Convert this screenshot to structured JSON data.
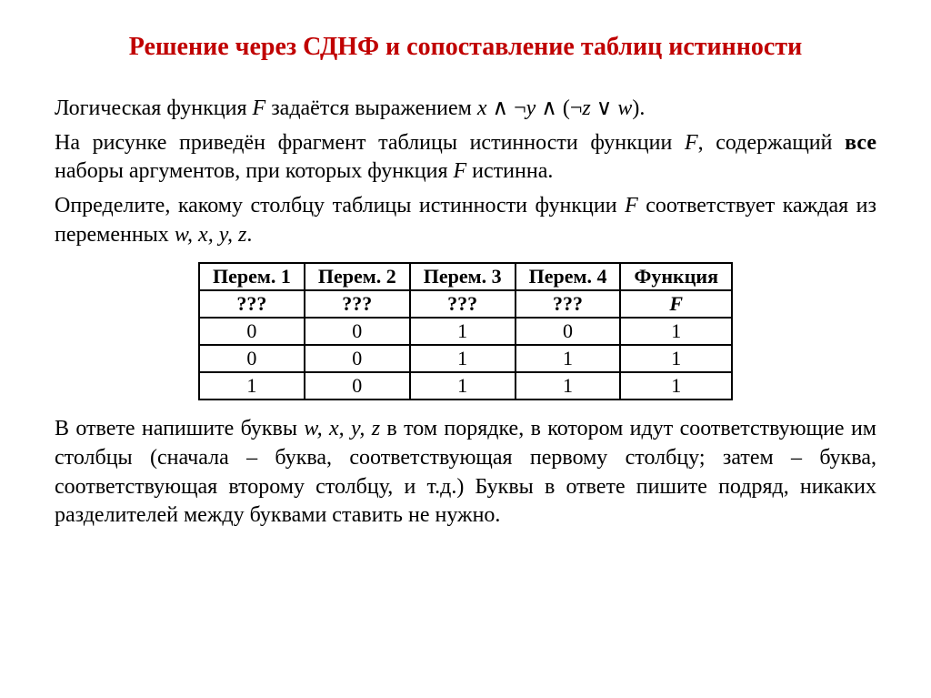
{
  "title": "Решение через СДНФ и сопоставление таблиц истинности",
  "intro": {
    "p1_prefix": "Логическая функция ",
    "F": "F",
    "p1_mid": " задаётся выражением ",
    "expr_x": "x",
    "and1": " ∧ ¬",
    "expr_y": "y",
    "and2": " ∧ (¬",
    "expr_z": "z",
    "or": " ∨ ",
    "expr_w": "w",
    "close": ").",
    "p2a": "На рисунке приведён фрагмент таблицы истинности функции ",
    "p2b": ", содержащий ",
    "p2_all": "все",
    "p2c": " наборы аргументов, при которых функция ",
    "p2d": " истинна.",
    "p3a": "Определите, какому столбцу таблицы истинности функции ",
    "p3b": " соответствует каждая из переменных ",
    "vars": "w, x, y, z",
    "p3c": "."
  },
  "table": {
    "headers": [
      "Перем. 1",
      "Перем. 2",
      "Перем. 3",
      "Перем. 4",
      "Функция"
    ],
    "qrow": [
      "???",
      "???",
      "???",
      "???",
      "F"
    ],
    "rows": [
      [
        "0",
        "0",
        "1",
        "0",
        "1"
      ],
      [
        "0",
        "0",
        "1",
        "1",
        "1"
      ],
      [
        "1",
        "0",
        "1",
        "1",
        "1"
      ]
    ]
  },
  "outro": {
    "a1": "В ответе напишите буквы ",
    "vars": "w, x, y, z",
    "a2": " в том порядке, в котором идут соответствующие им столбцы (сначала – буква, соответствующая первому столбцу; затем – буква, соответствующая второму столбцу, и т.д.) Буквы в ответе пишите подряд, никаких разделителей между буквами ставить не нужно."
  }
}
